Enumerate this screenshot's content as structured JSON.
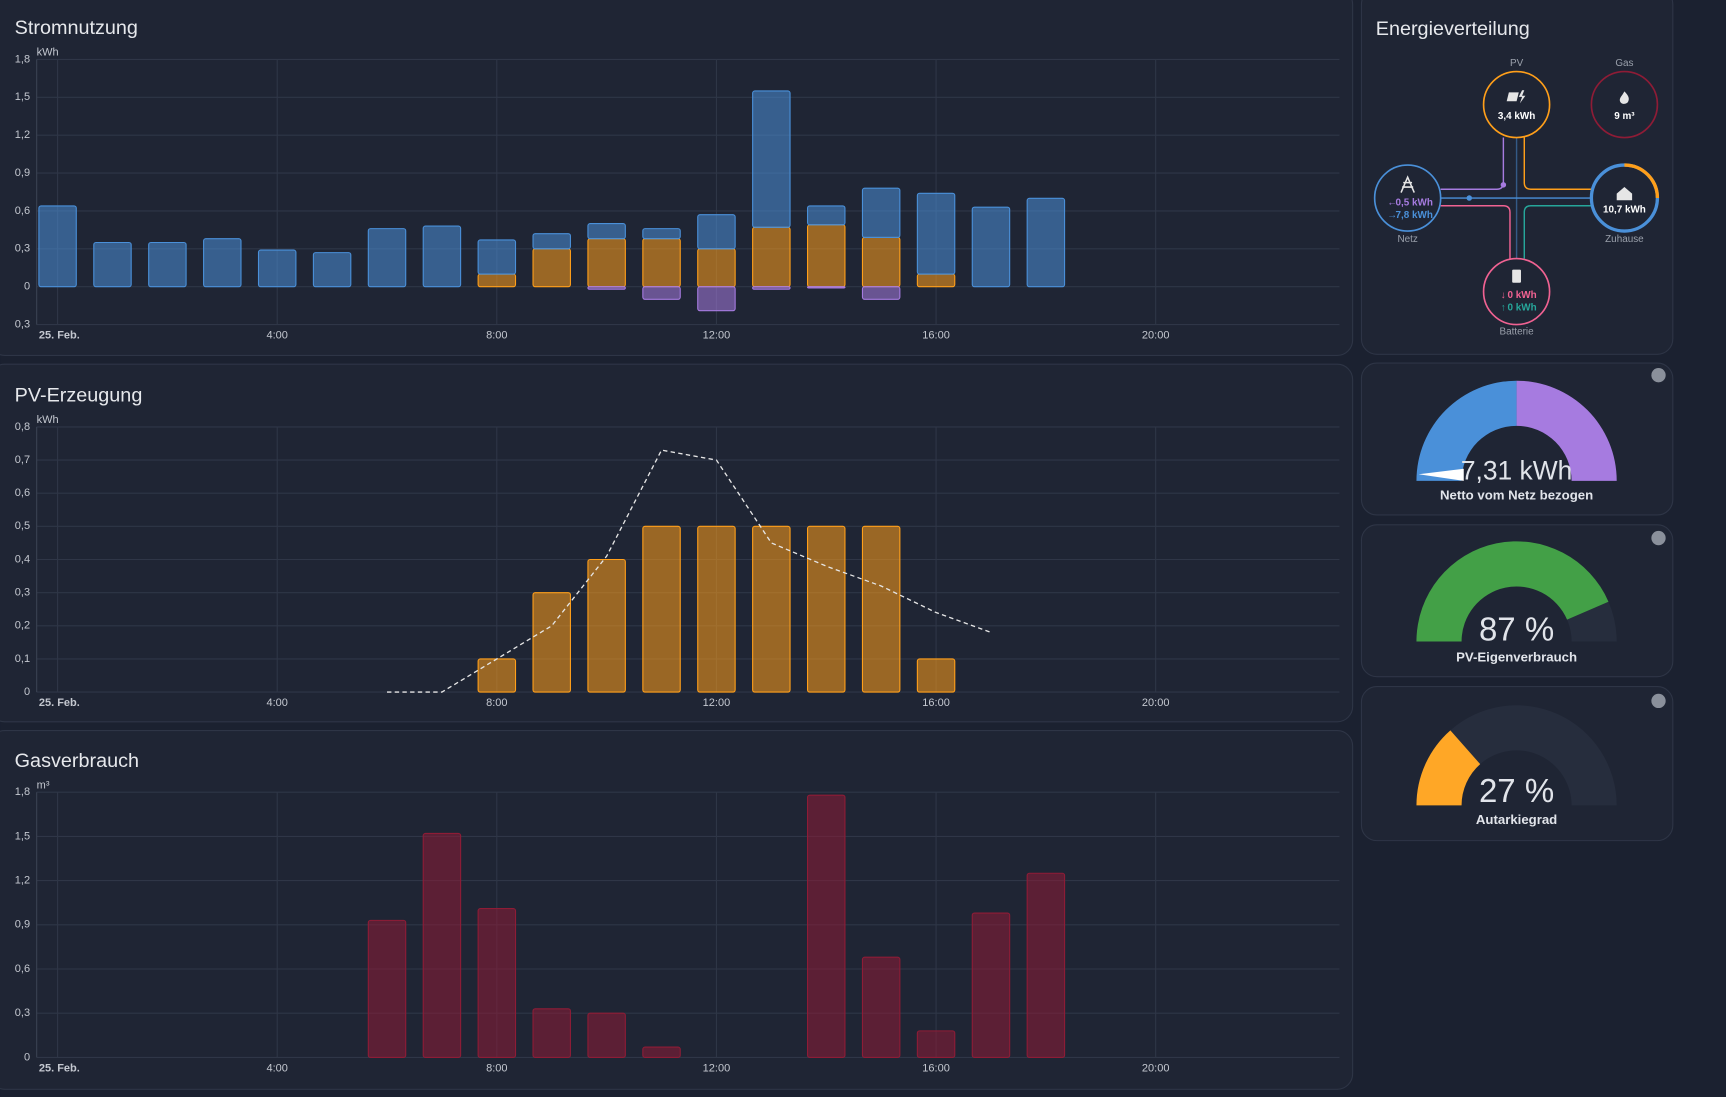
{
  "chart_data": [
    {
      "type": "bar",
      "stacked": true,
      "title": "Stromnutzung",
      "unit": "kWh",
      "categories": [
        "25. Feb.",
        null,
        null,
        null,
        "4:00",
        null,
        null,
        null,
        "8:00",
        null,
        null,
        null,
        "12:00",
        null,
        null,
        null,
        "16:00",
        null,
        null,
        null,
        "20:00",
        null,
        null,
        null
      ],
      "series": [
        {
          "color": "#ff9f1a",
          "values": [
            null,
            null,
            null,
            null,
            null,
            null,
            null,
            null,
            0.1,
            0.3,
            0.38,
            0.38,
            0.3,
            0.47,
            0.49,
            0.39,
            0.1,
            null,
            null,
            null,
            null,
            null,
            null,
            null
          ]
        },
        {
          "color": "#4a90d9",
          "values": [
            0.64,
            0.35,
            0.35,
            0.38,
            0.29,
            0.27,
            0.46,
            0.48,
            0.27,
            0.12,
            0.12,
            0.08,
            0.27,
            1.08,
            0.15,
            0.39,
            0.64,
            0.63,
            0.7,
            null,
            null,
            null,
            null,
            null
          ]
        },
        {
          "color": "#a67be0",
          "values": [
            null,
            null,
            null,
            null,
            null,
            null,
            null,
            null,
            null,
            null,
            -0.02,
            -0.1,
            -0.19,
            -0.02,
            -0.01,
            -0.1,
            null,
            null,
            null,
            null,
            null,
            null,
            null,
            null
          ]
        }
      ],
      "ylim": [
        -0.3,
        1.8
      ],
      "yticks": [
        {
          "value": -0.3,
          "label": "0,3"
        },
        0,
        {
          "value": 0.3,
          "label": "0,3"
        },
        {
          "value": 0.6,
          "label": "0,6"
        },
        {
          "value": 0.9,
          "label": "0,9"
        },
        {
          "value": 1.2,
          "label": "1,2"
        },
        {
          "value": 1.5,
          "label": "1,5"
        },
        {
          "value": 1.8,
          "label": "1,8"
        }
      ],
      "grid": true
    },
    {
      "type": "bar",
      "title": "PV-Erzeugung",
      "unit": "kWh",
      "categories": [
        "25. Feb.",
        null,
        null,
        null,
        "4:00",
        null,
        null,
        null,
        "8:00",
        null,
        null,
        null,
        "12:00",
        null,
        null,
        null,
        "16:00",
        null,
        null,
        null,
        "20:00",
        null,
        null,
        null
      ],
      "series": [
        {
          "color": "#ff9f1a",
          "values": [
            null,
            null,
            null,
            null,
            null,
            null,
            null,
            null,
            0.1,
            0.3,
            0.4,
            0.5,
            0.5,
            0.5,
            0.5,
            0.5,
            0.1,
            null,
            null,
            null,
            null,
            null,
            null,
            null
          ]
        },
        {
          "type": "line",
          "dashed": true,
          "color": "#e6e6e6",
          "values": [
            null,
            null,
            null,
            null,
            null,
            null,
            0,
            0,
            0.1,
            0.2,
            0.41,
            0.73,
            0.7,
            0.45,
            0.38,
            0.32,
            0.24,
            0.18,
            null,
            null,
            null,
            null,
            null,
            null
          ]
        }
      ],
      "ylim": [
        0,
        0.8
      ],
      "yticks": [
        0,
        {
          "value": 0.1,
          "label": "0,1"
        },
        {
          "value": 0.2,
          "label": "0,2"
        },
        {
          "value": 0.3,
          "label": "0,3"
        },
        {
          "value": 0.4,
          "label": "0,4"
        },
        {
          "value": 0.5,
          "label": "0,5"
        },
        {
          "value": 0.6,
          "label": "0,6"
        },
        {
          "value": 0.7,
          "label": "0,7"
        },
        {
          "value": 0.8,
          "label": "0,8"
        }
      ],
      "grid": true
    },
    {
      "type": "bar",
      "title": "Gasverbrauch",
      "unit": "m³",
      "categories": [
        "25. Feb.",
        null,
        null,
        null,
        "4:00",
        null,
        null,
        null,
        "8:00",
        null,
        null,
        null,
        "12:00",
        null,
        null,
        null,
        "16:00",
        null,
        null,
        null,
        "20:00",
        null,
        null,
        null
      ],
      "series": [
        {
          "color": "#8e1c36",
          "values": [
            null,
            null,
            null,
            null,
            null,
            null,
            0.93,
            1.52,
            1.01,
            0.33,
            0.3,
            0.07,
            null,
            null,
            1.78,
            0.68,
            0.18,
            0.98,
            1.25,
            null,
            null,
            null,
            null,
            null
          ]
        }
      ],
      "ylim": [
        0,
        1.8
      ],
      "yticks": [
        0,
        {
          "value": 0.3,
          "label": "0,3"
        },
        {
          "value": 0.6,
          "label": "0,6"
        },
        {
          "value": 0.9,
          "label": "0,9"
        },
        {
          "value": 1.2,
          "label": "1,2"
        },
        {
          "value": 1.5,
          "label": "1,5"
        },
        {
          "value": 1.8,
          "label": "1,8"
        }
      ],
      "grid": true
    }
  ],
  "energy": {
    "title": "Energieverteilung",
    "pv": {
      "label": "PV",
      "value": "3,4 kWh"
    },
    "gas": {
      "label": "Gas",
      "value": "9 m³"
    },
    "grid": {
      "label": "Netz",
      "in": "0,5 kWh",
      "out": "7,8 kWh"
    },
    "home": {
      "label": "Zuhause",
      "value": "10,7 kWh"
    },
    "battery": {
      "label": "Batterie",
      "in": "0 kWh",
      "out": "0 kWh"
    }
  },
  "gauges": [
    {
      "label": "7,31 kWh",
      "caption": "Netto vom Netz bezogen"
    },
    {
      "value": 87,
      "label": "87 %",
      "caption": "PV-Eigenverbrauch",
      "color": "#43a047"
    },
    {
      "value": 27,
      "label": "27 %",
      "caption": "Autarkiegrad",
      "color": "#ffa726"
    }
  ]
}
